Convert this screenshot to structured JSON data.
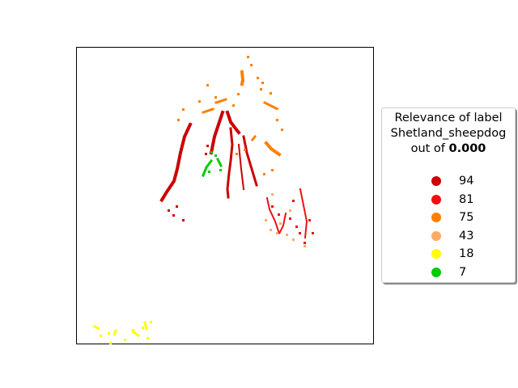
{
  "chart_data": {
    "type": "heatmap",
    "legend": {
      "title_line1": "Relevance of label",
      "title_line2": "Shetland_sheepdog",
      "title_line3_prefix": "out of ",
      "title_line3_value": "0.000",
      "placement": "right",
      "entries": [
        {
          "label": "94",
          "color": "#cc0000"
        },
        {
          "label": "81",
          "color": "#ee1111"
        },
        {
          "label": "75",
          "color": "#ff8000"
        },
        {
          "label": "43",
          "color": "#ffaa66"
        },
        {
          "label": "18",
          "color": "#ffff00"
        },
        {
          "label": "7",
          "color": "#00cc00"
        }
      ]
    },
    "grid": false,
    "axis_ticks": false
  }
}
